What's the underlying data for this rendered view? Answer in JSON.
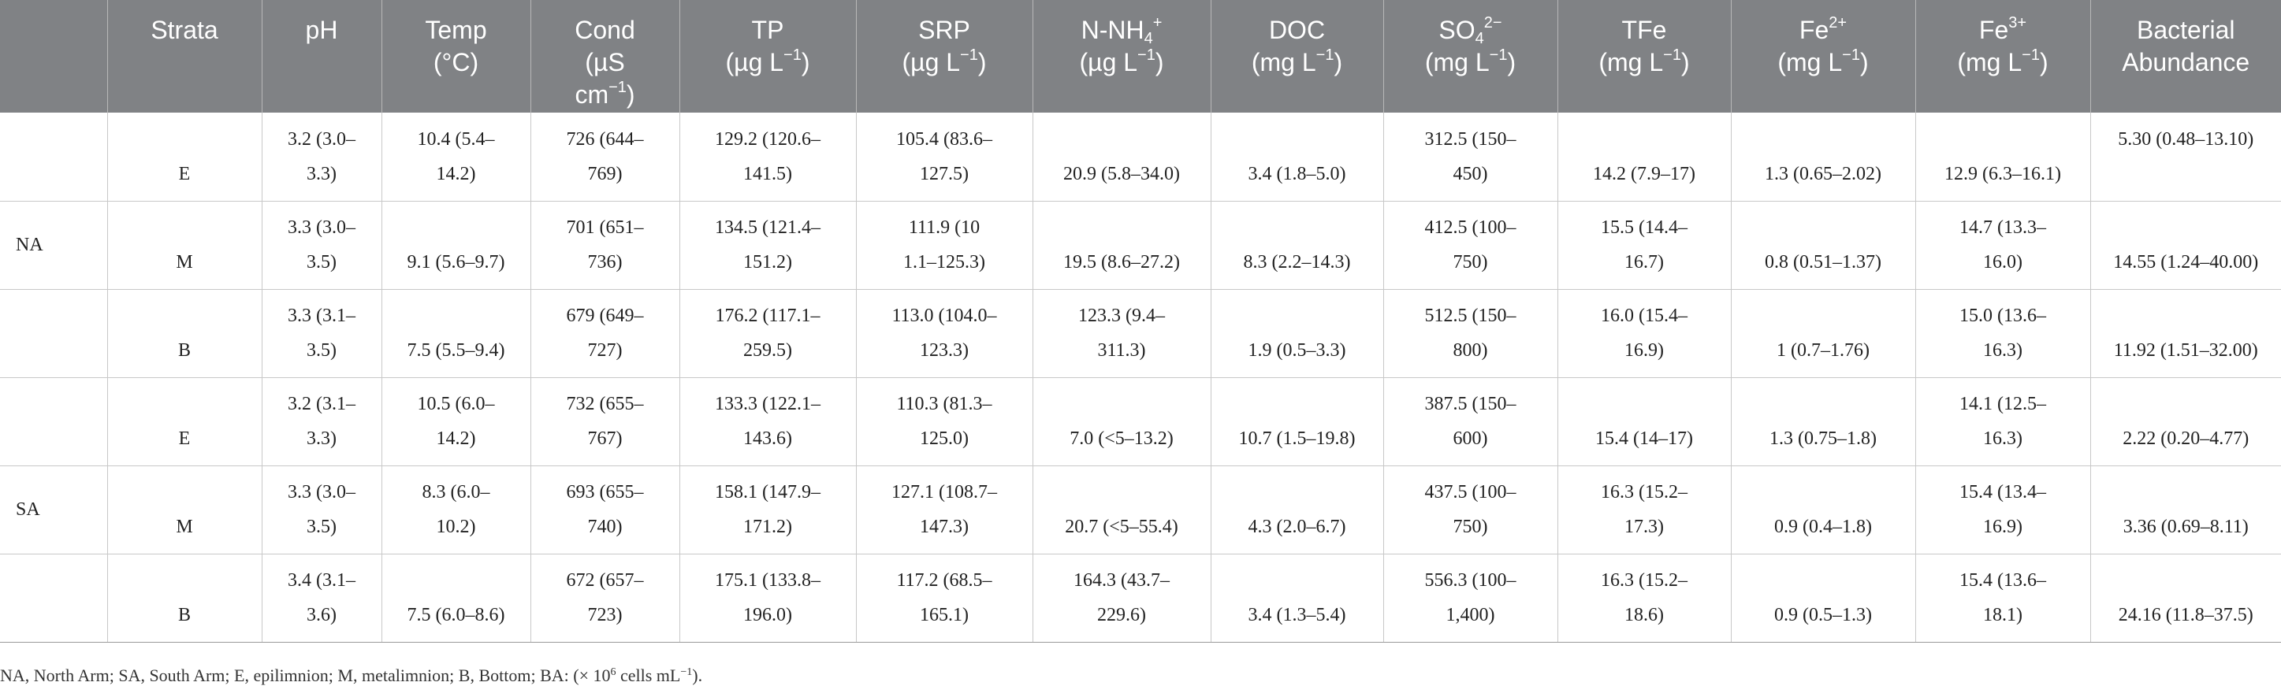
{
  "header": {
    "strata": "Strata",
    "ph": "pH",
    "temp": [
      "Temp",
      "(°C)"
    ],
    "cond": [
      "Cond",
      "(µS",
      "cm",
      "−1",
      ")"
    ],
    "tp": [
      "TP",
      "(µg L",
      "−1",
      ")"
    ],
    "srp": [
      "SRP",
      "(µg L",
      "−1",
      ")"
    ],
    "nh4": [
      "N-NH",
      "4",
      "+",
      "(µg L",
      "−1",
      ")"
    ],
    "doc": [
      "DOC",
      "(mg L",
      "−1",
      ")"
    ],
    "so4": [
      "SO",
      "4",
      "2−",
      "(mg L",
      "−1",
      ")"
    ],
    "tfe": [
      "TFe",
      "(mg L",
      "−1",
      ")"
    ],
    "fe2": [
      "Fe",
      "2+",
      "(mg L",
      "−1",
      ")"
    ],
    "fe3": [
      "Fe",
      "3+",
      "(mg L",
      "−1",
      ")"
    ],
    "bact": [
      "Bacterial",
      "Abundance"
    ]
  },
  "rows": [
    {
      "site": "",
      "strata": "E",
      "ph": [
        "3.2 (3.0–",
        "3.3)"
      ],
      "temp": [
        "10.4 (5.4–",
        "14.2)"
      ],
      "cond": [
        "726 (644–",
        "769)"
      ],
      "tp": [
        "129.2 (120.6–",
        "141.5)"
      ],
      "srp": [
        "105.4 (83.6–",
        "127.5)"
      ],
      "nh4": [
        "",
        "20.9 (5.8–34.0)"
      ],
      "doc": [
        "",
        "3.4 (1.8–5.0)"
      ],
      "so4": [
        "312.5 (150–",
        "450)"
      ],
      "tfe": [
        "",
        "14.2 (7.9–17)"
      ],
      "fe2": [
        "",
        "1.3 (0.65–2.02)"
      ],
      "fe3": [
        "",
        "12.9 (6.3–16.1)"
      ],
      "bact": [
        "5.30 (0.48–13.10)",
        ""
      ]
    },
    {
      "site": "NA",
      "strata": "M",
      "ph": [
        "3.3 (3.0–",
        "3.5)"
      ],
      "temp": [
        "",
        "9.1 (5.6–9.7)"
      ],
      "cond": [
        "701 (651–",
        "736)"
      ],
      "tp": [
        "134.5 (121.4–",
        "151.2)"
      ],
      "srp": [
        "111.9 (10",
        "1.1–125.3)"
      ],
      "nh4": [
        "",
        "19.5 (8.6–27.2)"
      ],
      "doc": [
        "",
        "8.3 (2.2–14.3)"
      ],
      "so4": [
        "412.5 (100–",
        "750)"
      ],
      "tfe": [
        "15.5 (14.4–",
        "16.7)"
      ],
      "fe2": [
        "",
        "0.8 (0.51–1.37)"
      ],
      "fe3": [
        "14.7 (13.3–",
        "16.0)"
      ],
      "bact": [
        "",
        "14.55 (1.24–40.00)"
      ]
    },
    {
      "site": "",
      "strata": "B",
      "ph": [
        "3.3 (3.1–",
        "3.5)"
      ],
      "temp": [
        "",
        "7.5 (5.5–9.4)"
      ],
      "cond": [
        "679 (649–",
        "727)"
      ],
      "tp": [
        "176.2 (117.1–",
        "259.5)"
      ],
      "srp": [
        "113.0 (104.0–",
        "123.3)"
      ],
      "nh4": [
        "123.3 (9.4–",
        "311.3)"
      ],
      "doc": [
        "",
        "1.9 (0.5–3.3)"
      ],
      "so4": [
        "512.5 (150–",
        "800)"
      ],
      "tfe": [
        "16.0 (15.4–",
        "16.9)"
      ],
      "fe2": [
        "",
        "1 (0.7–1.76)"
      ],
      "fe3": [
        "15.0 (13.6–",
        "16.3)"
      ],
      "bact": [
        "",
        "11.92 (1.51–32.00)"
      ]
    },
    {
      "site": "",
      "strata": "E",
      "ph": [
        "3.2 (3.1–",
        "3.3)"
      ],
      "temp": [
        "10.5 (6.0–",
        "14.2)"
      ],
      "cond": [
        "732 (655–",
        "767)"
      ],
      "tp": [
        "133.3 (122.1–",
        "143.6)"
      ],
      "srp": [
        "110.3 (81.3–",
        "125.0)"
      ],
      "nh4": [
        "",
        "7.0 (<5–13.2)"
      ],
      "doc": [
        "",
        "10.7 (1.5–19.8)"
      ],
      "so4": [
        "387.5 (150–",
        "600)"
      ],
      "tfe": [
        "",
        "15.4 (14–17)"
      ],
      "fe2": [
        "",
        "1.3 (0.75–1.8)"
      ],
      "fe3": [
        "14.1 (12.5–",
        "16.3)"
      ],
      "bact": [
        "",
        "2.22 (0.20–4.77)"
      ]
    },
    {
      "site": "SA",
      "strata": "M",
      "ph": [
        "3.3 (3.0–",
        "3.5)"
      ],
      "temp": [
        "8.3 (6.0–",
        "10.2)"
      ],
      "cond": [
        "693 (655–",
        "740)"
      ],
      "tp": [
        "158.1 (147.9–",
        "171.2)"
      ],
      "srp": [
        "127.1 (108.7–",
        "147.3)"
      ],
      "nh4": [
        "",
        "20.7 (<5–55.4)"
      ],
      "doc": [
        "",
        "4.3 (2.0–6.7)"
      ],
      "so4": [
        "437.5 (100–",
        "750)"
      ],
      "tfe": [
        "16.3 (15.2–",
        "17.3)"
      ],
      "fe2": [
        "",
        "0.9 (0.4–1.8)"
      ],
      "fe3": [
        "15.4 (13.4–",
        "16.9)"
      ],
      "bact": [
        "",
        "3.36 (0.69–8.11)"
      ]
    },
    {
      "site": "",
      "strata": "B",
      "ph": [
        "3.4 (3.1–",
        "3.6)"
      ],
      "temp": [
        "",
        "7.5 (6.0–8.6)"
      ],
      "cond": [
        "672 (657–",
        "723)"
      ],
      "tp": [
        "175.1 (133.8–",
        "196.0)"
      ],
      "srp": [
        "117.2 (68.5–",
        "165.1)"
      ],
      "nh4": [
        "164.3 (43.7–",
        "229.6)"
      ],
      "doc": [
        "",
        "3.4 (1.3–5.4)"
      ],
      "so4": [
        "556.3 (100–",
        "1,400)"
      ],
      "tfe": [
        "16.3 (15.2–",
        "18.6)"
      ],
      "fe2": [
        "",
        "0.9 (0.5–1.3)"
      ],
      "fe3": [
        "15.4 (13.6–",
        "18.1)"
      ],
      "bact": [
        "",
        "24.16 (11.8–37.5)"
      ]
    }
  ],
  "footnote": {
    "text_before": "NA, North Arm; SA, South Arm; E, epilimnion; M, metalimnion; B, Bottom; BA: (× 10",
    "sup": "6",
    "text_after": " cells mL",
    "sup2": "−1",
    "end": ")."
  }
}
